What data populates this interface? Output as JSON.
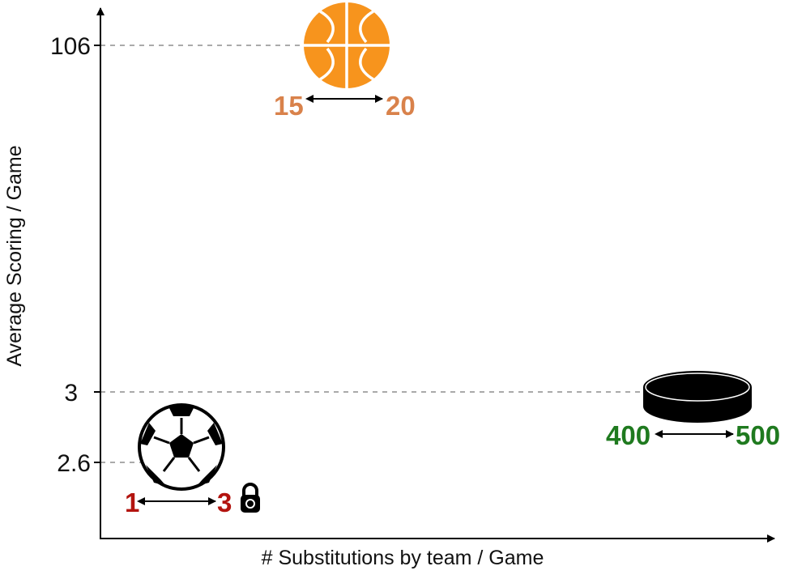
{
  "chart_data": {
    "type": "scatter",
    "xlabel": "# Substitutions by team / Game",
    "ylabel": "Average Scoring / Game",
    "y_ticks": [
      {
        "label": "106"
      },
      {
        "label": "3"
      },
      {
        "label": "2.6"
      }
    ],
    "grid": false,
    "points": [
      {
        "sport_icon": "basketball-icon",
        "y": 106,
        "sub_min": "15",
        "sub_max": "20",
        "color": "#d9824b"
      },
      {
        "sport_icon": "hockey-puck-icon",
        "y": 3,
        "sub_min": "400",
        "sub_max": "500",
        "color": "#1f7a1f"
      },
      {
        "sport_icon": "soccer-ball-icon",
        "y": 2.6,
        "sub_min": "1",
        "sub_max": "3",
        "color": "#b3140f",
        "extra_icon": "padlock-icon"
      }
    ]
  }
}
